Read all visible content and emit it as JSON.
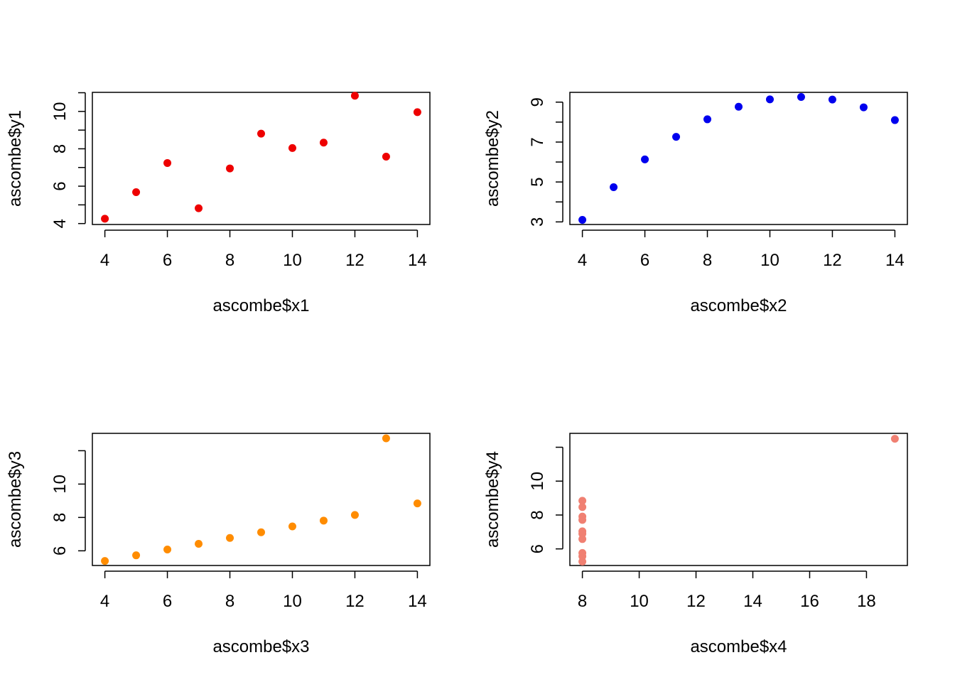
{
  "chart_data": [
    {
      "type": "scatter",
      "xlabel": "ascombe$x1",
      "ylabel": "ascombe$y1",
      "color": "#ee0000",
      "xlim": [
        3.6,
        14.4
      ],
      "ylim": [
        3.95,
        11.02
      ],
      "xticks": [
        4,
        6,
        8,
        10,
        12,
        14
      ],
      "yticks": [
        4,
        5,
        6,
        7,
        8,
        9,
        10,
        11
      ],
      "ytick_labels": [
        4,
        6,
        8,
        10
      ],
      "x": [
        10,
        8,
        13,
        9,
        11,
        14,
        6,
        4,
        12,
        7,
        5
      ],
      "y": [
        8.04,
        6.95,
        7.58,
        8.81,
        8.33,
        9.96,
        7.24,
        4.26,
        10.84,
        4.82,
        5.68
      ]
    },
    {
      "type": "scatter",
      "xlabel": "ascombe$x2",
      "ylabel": "ascombe$y2",
      "color": "#0000ee",
      "xlim": [
        3.6,
        14.4
      ],
      "ylim": [
        2.87,
        9.49
      ],
      "xticks": [
        4,
        6,
        8,
        10,
        12,
        14
      ],
      "yticks": [
        3,
        4,
        5,
        6,
        7,
        8,
        9
      ],
      "ytick_labels": [
        3,
        5,
        7,
        9
      ],
      "x": [
        10,
        8,
        13,
        9,
        11,
        14,
        6,
        4,
        12,
        7,
        5
      ],
      "y": [
        9.14,
        8.14,
        8.74,
        8.77,
        9.26,
        8.1,
        6.13,
        3.1,
        9.13,
        7.26,
        4.74
      ]
    },
    {
      "type": "scatter",
      "xlabel": "ascombe$x3",
      "ylabel": "ascombe$y3",
      "color": "#ff8c00",
      "xlim": [
        3.6,
        14.4
      ],
      "ylim": [
        5.12,
        13.04
      ],
      "xticks": [
        4,
        6,
        8,
        10,
        12,
        14
      ],
      "yticks": [
        6,
        8,
        10,
        12
      ],
      "ytick_labels": [
        6,
        8,
        10
      ],
      "x": [
        10,
        8,
        13,
        9,
        11,
        14,
        6,
        4,
        12,
        7,
        5
      ],
      "y": [
        7.46,
        6.77,
        12.74,
        7.11,
        7.81,
        8.84,
        6.08,
        5.39,
        8.15,
        6.42,
        5.73
      ]
    },
    {
      "type": "scatter",
      "xlabel": "ascombe$x4",
      "ylabel": "ascombe$y4",
      "color": "#f08072",
      "xlim": [
        7.56,
        19.44
      ],
      "ylim": [
        5.02,
        12.82
      ],
      "xticks": [
        8,
        10,
        12,
        14,
        16,
        18
      ],
      "yticks": [
        6,
        8,
        10,
        12
      ],
      "ytick_labels": [
        6,
        8,
        10
      ],
      "x": [
        8,
        8,
        8,
        8,
        8,
        8,
        8,
        19,
        8,
        8,
        8
      ],
      "y": [
        6.58,
        5.76,
        7.71,
        8.84,
        8.47,
        7.04,
        5.25,
        12.5,
        5.56,
        7.91,
        6.89
      ]
    }
  ]
}
